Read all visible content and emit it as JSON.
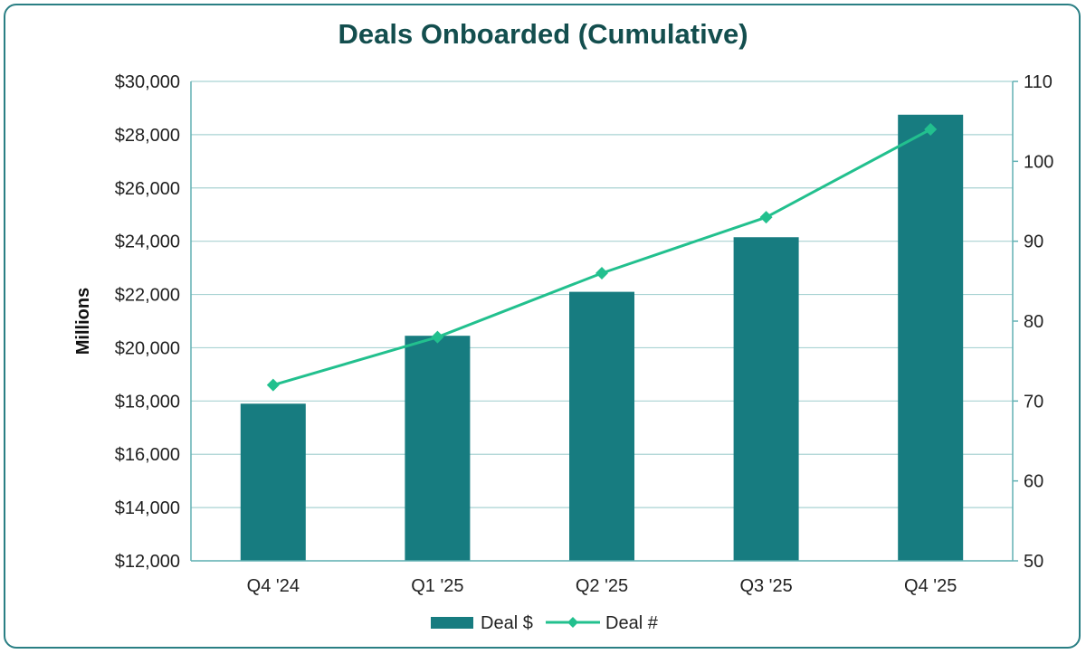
{
  "chart_data": {
    "type": "bar",
    "title": "Deals Onboarded (Cumulative)",
    "ylabel": "Millions",
    "y2label": "",
    "xlabel": "",
    "categories": [
      "Q4 '24",
      "Q1 '25",
      "Q2 '25",
      "Q3 '25",
      "Q4 '25"
    ],
    "series": [
      {
        "name": "Deal $",
        "type": "bar",
        "axis": "left",
        "values": [
          17900,
          20450,
          22100,
          24150,
          28750
        ]
      },
      {
        "name": "Deal #",
        "type": "line",
        "axis": "right",
        "marker": "diamond",
        "values": [
          72,
          78,
          86,
          93,
          104
        ]
      }
    ],
    "ylim": [
      12000,
      30000
    ],
    "y2lim": [
      50,
      110
    ],
    "y_ticks": [
      "$12,000",
      "$14,000",
      "$16,000",
      "$18,000",
      "$20,000",
      "$22,000",
      "$24,000",
      "$26,000",
      "$28,000",
      "$30,000"
    ],
    "y2_ticks": [
      "50",
      "60",
      "70",
      "80",
      "90",
      "100",
      "110"
    ],
    "grid": true,
    "legend_position": "bottom",
    "colors": {
      "bar": "#177c80",
      "line": "#22c08e",
      "grid": "#a9d3d3",
      "axis": "#62b1b4"
    }
  }
}
